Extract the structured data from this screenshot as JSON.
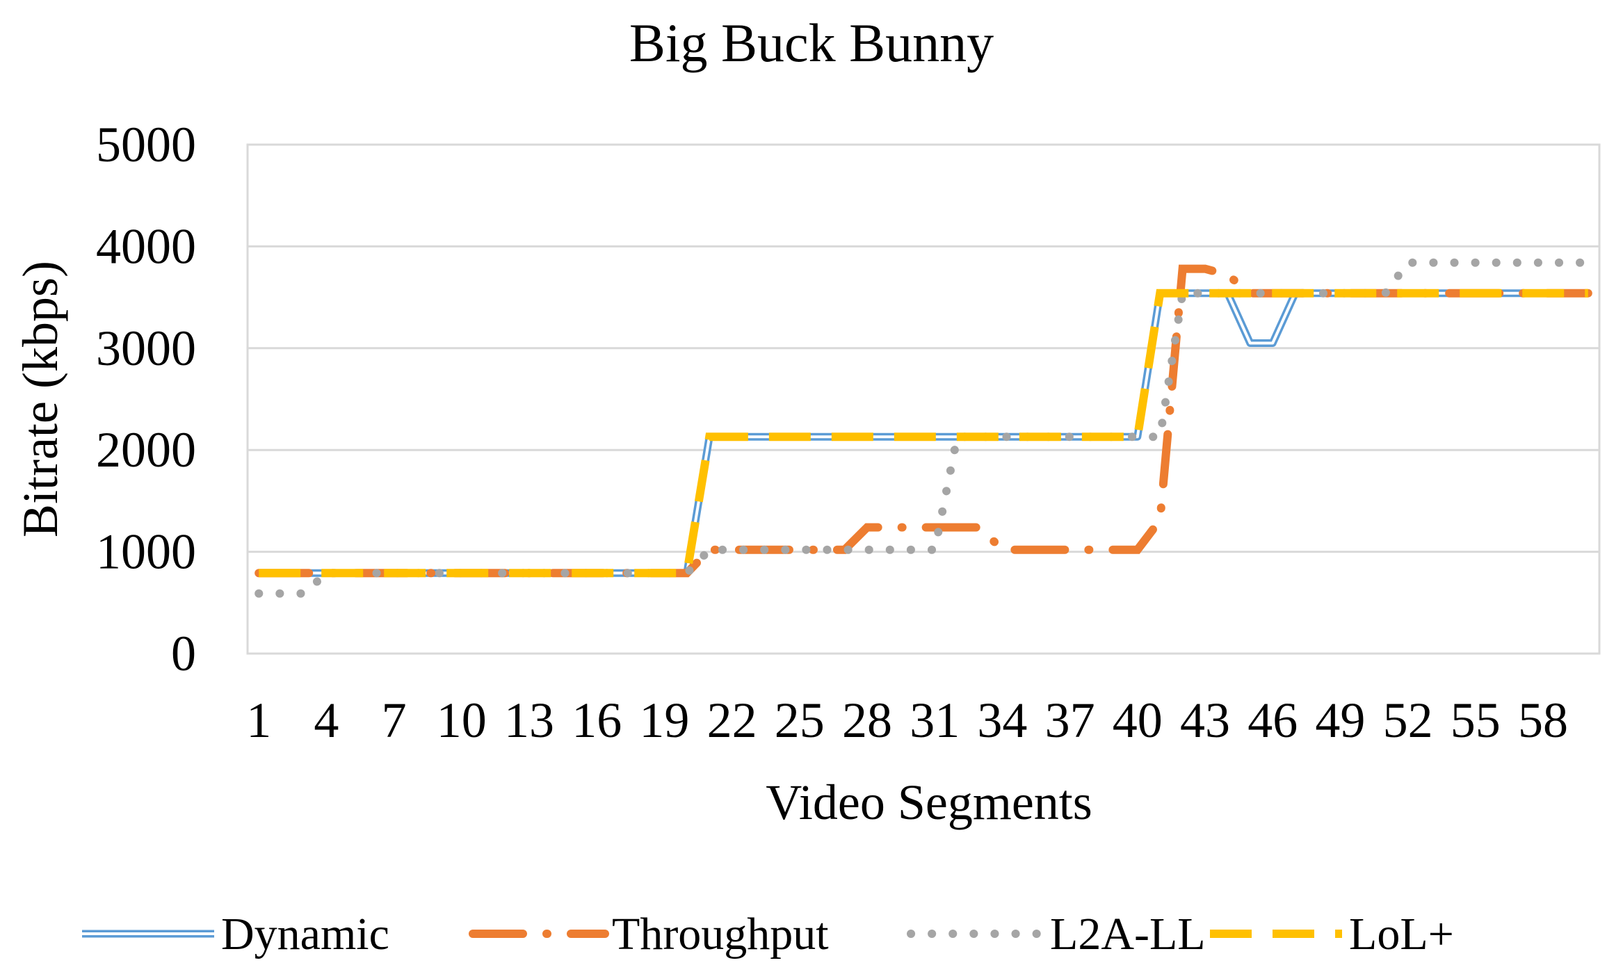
{
  "chart_data": {
    "type": "line",
    "title": "Big Buck Bunny",
    "xlabel": "Video Segments",
    "ylabel": "Bitrate (kbps)",
    "ylim": [
      0,
      5000
    ],
    "yticks": [
      "0",
      "1000",
      "2000",
      "3000",
      "4000",
      "5000"
    ],
    "xlim": [
      1,
      60
    ],
    "xticks": [
      "1",
      "4",
      "7",
      "10",
      "13",
      "16",
      "19",
      "22",
      "25",
      "28",
      "31",
      "34",
      "37",
      "40",
      "43",
      "46",
      "49",
      "52",
      "55",
      "58"
    ],
    "grid": true,
    "legend_position": "bottom",
    "x": [
      1,
      2,
      3,
      4,
      5,
      6,
      7,
      8,
      9,
      10,
      11,
      12,
      13,
      14,
      15,
      16,
      17,
      18,
      19,
      20,
      21,
      22,
      23,
      24,
      25,
      26,
      27,
      28,
      29,
      30,
      31,
      32,
      33,
      34,
      35,
      36,
      37,
      38,
      39,
      40,
      41,
      42,
      43,
      44,
      45,
      46,
      47,
      48,
      49,
      50,
      51,
      52,
      53,
      54,
      55,
      56,
      57,
      58,
      59,
      60
    ],
    "series": [
      {
        "name": "Dynamic",
        "style": "double",
        "color": "#5B9BD5",
        "values": [
          790,
          790,
          790,
          790,
          790,
          790,
          790,
          790,
          790,
          790,
          790,
          790,
          790,
          790,
          790,
          790,
          790,
          790,
          790,
          790,
          2130,
          2130,
          2130,
          2130,
          2130,
          2130,
          2130,
          2130,
          2130,
          2130,
          2130,
          2130,
          2130,
          2130,
          2130,
          2130,
          2130,
          2130,
          2130,
          2130,
          3540,
          3540,
          3540,
          3540,
          3050,
          3050,
          3540,
          3540,
          3540,
          3540,
          3540,
          3540,
          3540,
          3540,
          3540,
          3540,
          3540,
          3540,
          3540,
          3540
        ]
      },
      {
        "name": "Throughput",
        "style": "dash-dot",
        "color": "#ED7D31",
        "values": [
          790,
          790,
          790,
          790,
          790,
          790,
          790,
          790,
          790,
          790,
          790,
          790,
          790,
          790,
          790,
          790,
          790,
          790,
          790,
          790,
          1020,
          1020,
          1020,
          1020,
          1020,
          1020,
          1020,
          1240,
          1240,
          1240,
          1240,
          1240,
          1240,
          1020,
          1020,
          1020,
          1020,
          1020,
          1020,
          1020,
          1310,
          3780,
          3780,
          3720,
          3540,
          3540,
          3540,
          3540,
          3540,
          3540,
          3540,
          3540,
          3540,
          3540,
          3540,
          3540,
          3540,
          3540,
          3540,
          3540
        ]
      },
      {
        "name": "L2A-LL",
        "style": "dotted",
        "color": "#A5A5A5",
        "values": [
          590,
          590,
          590,
          790,
          790,
          790,
          790,
          790,
          790,
          790,
          790,
          790,
          790,
          790,
          790,
          790,
          790,
          790,
          790,
          790,
          1020,
          1020,
          1020,
          1020,
          1020,
          1020,
          1020,
          1020,
          1020,
          1020,
          1020,
          2130,
          2130,
          2130,
          2130,
          2130,
          2130,
          2130,
          2130,
          2130,
          2130,
          3540,
          3540,
          3540,
          3540,
          3540,
          3540,
          3540,
          3540,
          3540,
          3540,
          3840,
          3840,
          3840,
          3840,
          3840,
          3840,
          3840,
          3840,
          3840
        ]
      },
      {
        "name": "LoL+",
        "style": "dashed",
        "color": "#FFC000",
        "values": [
          790,
          790,
          790,
          790,
          790,
          790,
          790,
          790,
          790,
          790,
          790,
          790,
          790,
          790,
          790,
          790,
          790,
          790,
          790,
          790,
          2130,
          2130,
          2130,
          2130,
          2130,
          2130,
          2130,
          2130,
          2130,
          2130,
          2130,
          2130,
          2130,
          2130,
          2130,
          2130,
          2130,
          2130,
          2130,
          2130,
          3540,
          3540,
          3540,
          3540,
          3540,
          3540,
          3540,
          3540,
          3540,
          3540,
          3540,
          3540,
          3540,
          3540,
          3540,
          3540,
          3540,
          3540,
          3540,
          3540
        ]
      }
    ]
  }
}
